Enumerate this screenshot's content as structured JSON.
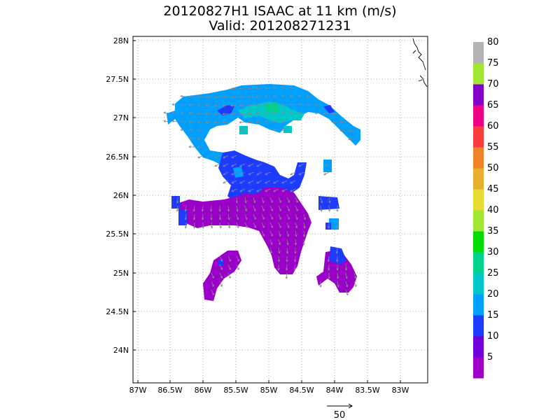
{
  "title": {
    "line1": "20120827H1 ISAAC at 11 km (m/s)",
    "line2": "Valid: 201208271231"
  },
  "map": {
    "lon_labels": [
      "87W",
      "86.5W",
      "86W",
      "85.5W",
      "85W",
      "84.5W",
      "84W",
      "83.5W",
      "83W"
    ],
    "lat_labels": [
      "28N",
      "27.5N",
      "27N",
      "26.5N",
      "26N",
      "25.5N",
      "25N",
      "24.5N",
      "24N"
    ],
    "lon_range": [
      -87.1,
      -82.6
    ],
    "lat_range": [
      23.6,
      28.05
    ],
    "gridlines": true,
    "wind_vectors": true
  },
  "colorbar": {
    "labels": [
      "5",
      "10",
      "15",
      "20",
      "25",
      "30",
      "35",
      "40",
      "45",
      "50",
      "55",
      "60",
      "65",
      "70",
      "75",
      "80"
    ],
    "colors": [
      "#a000c8",
      "#6e00dc",
      "#1e3cff",
      "#00a0ff",
      "#00c8c8",
      "#00d28c",
      "#00dc00",
      "#a0e632",
      "#e6dc32",
      "#e6af2d",
      "#f08228",
      "#fa3c3c",
      "#f00082",
      "#8200c8",
      "#a0e632",
      "#b4b4b4"
    ]
  },
  "reference_vector": {
    "label": "50"
  },
  "colors": {
    "purple": "#9a00c8",
    "blue": "#1e3cff",
    "lightblue": "#00a0ff",
    "cyan": "#00c8c8",
    "teal": "#00d28c",
    "vector": "#888888"
  }
}
